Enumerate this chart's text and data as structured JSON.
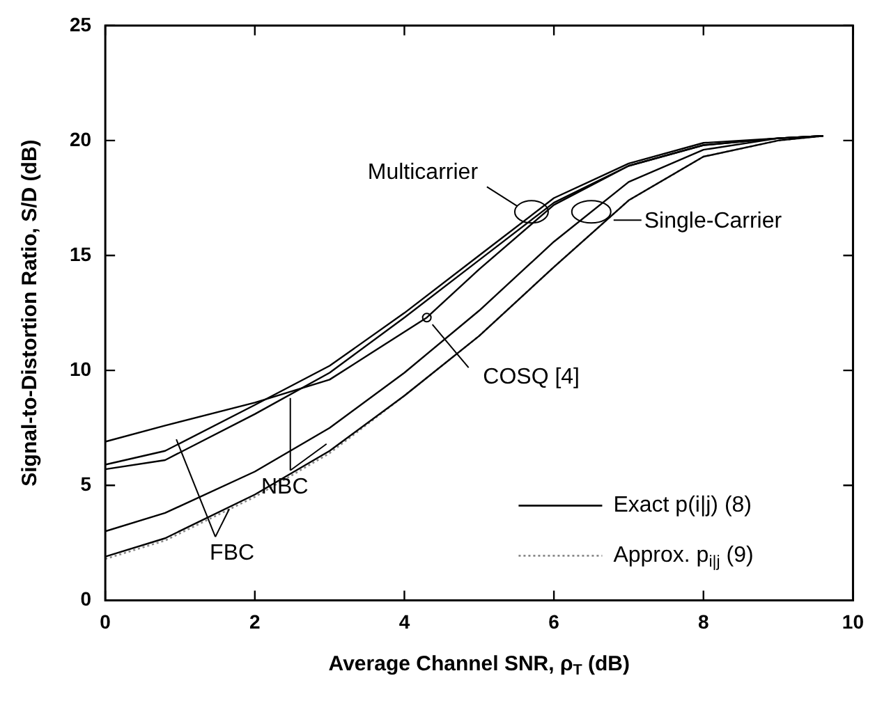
{
  "chart_data": {
    "type": "line",
    "xlabel": "Average Channel SNR, ρ$_{T}$ (dB)",
    "ylabel": "Signal-to-Distortion Ratio, S/D (dB)",
    "xlim": [
      0,
      10
    ],
    "xticks": [
      0,
      2,
      4,
      6,
      8,
      10
    ],
    "ylim": [
      0,
      25
    ],
    "yticks": [
      0,
      5,
      10,
      15,
      20,
      25
    ],
    "grid": false,
    "legend": "bottom right",
    "marker": "none",
    "line_style": "solid",
    "series": [
      {
        "color": "#000000",
        "x": [
          0,
          0.8,
          2,
          3,
          4.3,
          5,
          6,
          7,
          8,
          9,
          9.6
        ],
        "values": [
          6.9,
          7.6,
          8.6,
          9.6,
          12.3,
          14.4,
          17.2,
          18.9,
          19.8,
          20.1,
          20.2
        ]
      },
      {
        "color": "#000000",
        "x": [
          0,
          0.8,
          2,
          3,
          4,
          5,
          6,
          7,
          8,
          9,
          9.6
        ],
        "values": [
          5.9,
          6.5,
          8.5,
          10.2,
          12.5,
          15.0,
          17.5,
          19.0,
          19.9,
          20.1,
          20.2
        ]
      },
      {
        "color": "#000000",
        "x": [
          0,
          0.8,
          2,
          3,
          4,
          5,
          6,
          7,
          8,
          9,
          9.6
        ],
        "values": [
          5.7,
          6.1,
          8.1,
          9.9,
          12.3,
          14.8,
          17.3,
          18.9,
          19.8,
          20.1,
          20.2
        ]
      },
      {
        "name": "Exact p(i|j) (8)",
        "color": "#000000",
        "x": [
          0,
          0.8,
          2,
          3,
          4,
          5,
          6,
          7,
          8,
          9,
          9.6
        ],
        "values": [
          3.0,
          3.8,
          5.6,
          7.5,
          9.9,
          12.6,
          15.6,
          18.2,
          19.6,
          20.1,
          20.2
        ]
      },
      {
        "color": "#000000",
        "x": [
          0,
          0.8,
          2,
          3,
          4,
          5,
          6,
          7,
          8,
          9,
          9.6
        ],
        "values": [
          1.9,
          2.7,
          4.6,
          6.5,
          8.9,
          11.5,
          14.5,
          17.4,
          19.3,
          20.0,
          20.2
        ]
      },
      {
        "name": "Approx. p$_{i|j}$ (9)",
        "color": "#888888",
        "line_style": "dotted",
        "x": [
          0,
          0.8,
          2,
          3,
          4,
          5,
          6,
          7,
          8,
          9,
          9.6
        ],
        "values": [
          1.8,
          2.6,
          4.5,
          6.4,
          8.9,
          11.5,
          14.5,
          17.4,
          19.3,
          20.0,
          20.2
        ]
      }
    ],
    "annotations": [
      {
        "text": "Multicarrier",
        "x": 5.7,
        "y": 16.9
      },
      {
        "text": "Single-Carrier",
        "x": 6.5,
        "y": 16.9
      },
      {
        "text": "COSQ [4]",
        "x": 4.3,
        "y": 12.3
      },
      {
        "text": "NBC",
        "x": 2.4,
        "y": 8.8
      },
      {
        "text": "FBC",
        "x": 0.95,
        "y": 7.0
      }
    ]
  }
}
